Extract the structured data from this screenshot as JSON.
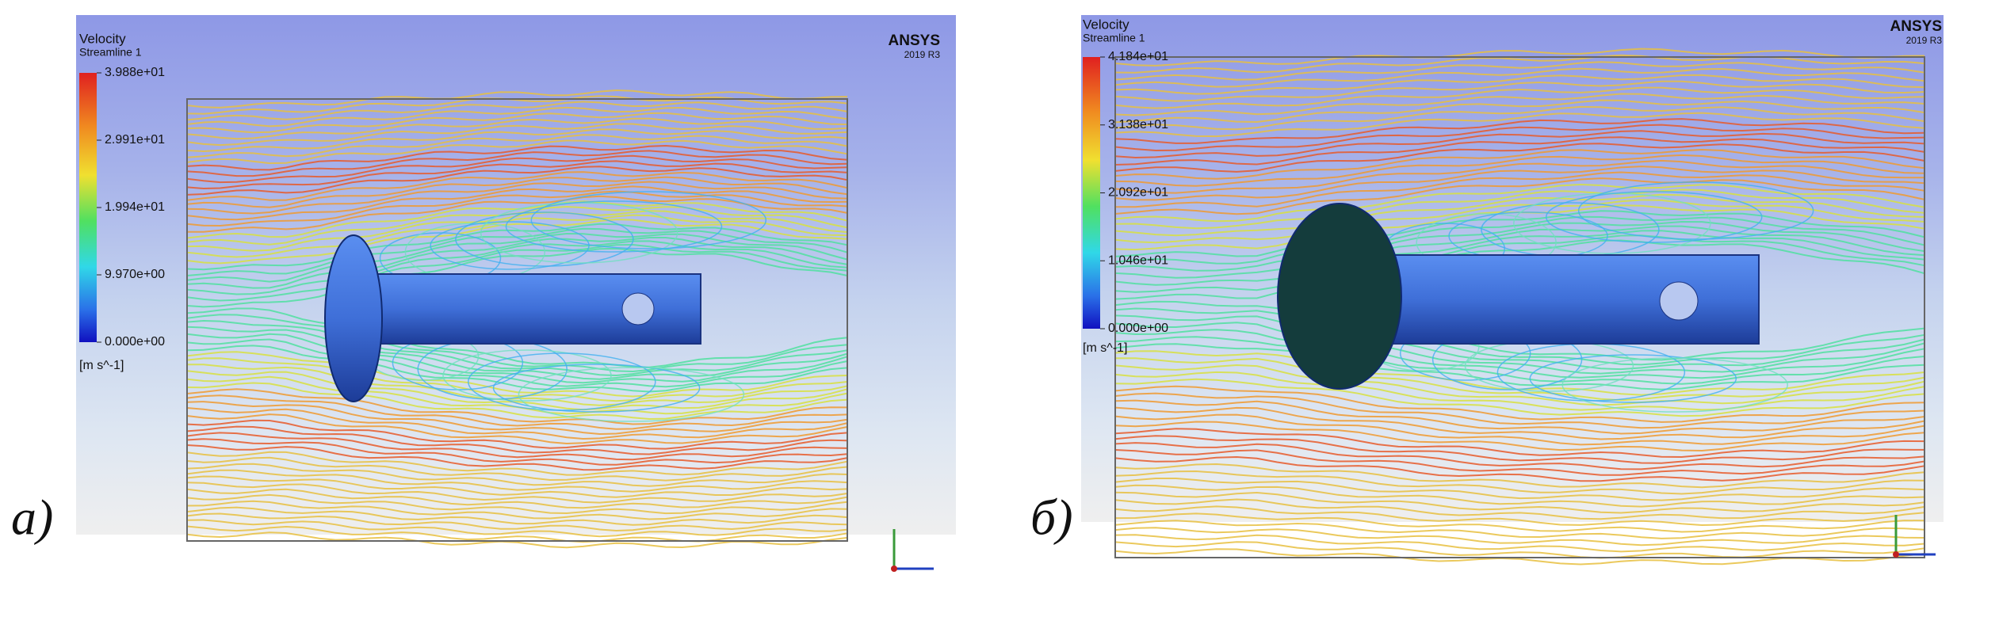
{
  "panels": [
    {
      "label": "а)",
      "title": "Velocity",
      "subtitle": "Streamline 1",
      "legend_ticks": [
        "3.988e+01",
        "2.991e+01",
        "1.994e+01",
        "9.970e+00",
        "0.000e+00"
      ],
      "unit": "[m s^-1]",
      "brand": "ANSYS",
      "version": "2019 R3"
    },
    {
      "label": "б)",
      "title": "Velocity",
      "subtitle": "Streamline 1",
      "legend_ticks": [
        "4.184e+01",
        "3.138e+01",
        "2.092e+01",
        "1.046e+01",
        "0.000e+00"
      ],
      "unit": "[m s^-1]",
      "brand": "ANSYS",
      "version": "2019 R3"
    }
  ]
}
